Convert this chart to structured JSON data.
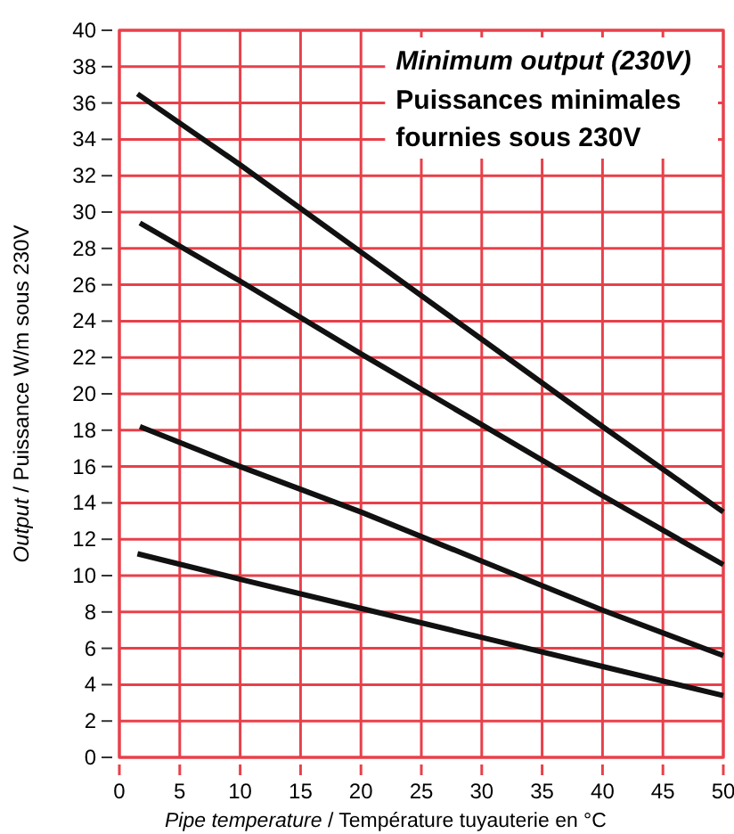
{
  "chart_data": {
    "type": "line",
    "title": "Minimum output (230V)",
    "subtitle": "Puissances minimales fournies sous 230V",
    "xlabel": "Pipe temperature  /  Température tuyauterie en °C",
    "ylabel": "Output  /  Puissance W/m sous 230V",
    "xlim": [
      0,
      50
    ],
    "ylim": [
      0,
      40
    ],
    "xticks": [
      0,
      5,
      10,
      15,
      20,
      25,
      30,
      35,
      40,
      45,
      50
    ],
    "yticks": [
      0,
      2,
      4,
      6,
      8,
      10,
      12,
      14,
      16,
      18,
      20,
      22,
      24,
      26,
      28,
      30,
      32,
      34,
      36,
      38,
      40
    ],
    "grid": true,
    "marker": "none",
    "line_style": "solid",
    "series": [
      {
        "color": "#111111",
        "x": [
          1.5,
          10,
          20,
          30,
          40,
          50
        ],
        "values": [
          36.5,
          32.6,
          27.8,
          23,
          18.2,
          13.5
        ]
      },
      {
        "color": "#111111",
        "x": [
          1.7,
          10,
          20,
          30,
          40,
          50
        ],
        "values": [
          29.4,
          26.2,
          22.2,
          18.3,
          14.4,
          10.6
        ]
      },
      {
        "color": "#111111",
        "x": [
          1.7,
          10,
          20,
          30,
          40,
          50
        ],
        "values": [
          18.2,
          16,
          13.5,
          10.8,
          8.1,
          5.6
        ]
      },
      {
        "color": "#111111",
        "x": [
          1.5,
          10,
          20,
          30,
          40,
          50
        ],
        "values": [
          11.2,
          9.8,
          8.2,
          6.6,
          5,
          3.4
        ]
      }
    ]
  }
}
